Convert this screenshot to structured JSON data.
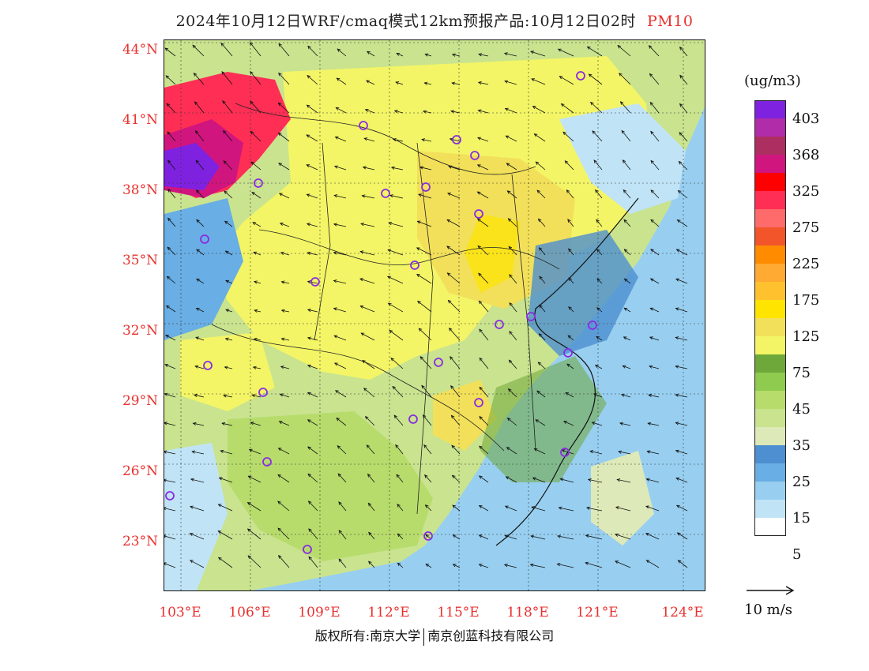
{
  "title": {
    "main": "2024年10月12日WRF/cmaq模式12km预报产品:10月12日02时",
    "variable": "PM10"
  },
  "axes": {
    "latitudes": [
      "44°N",
      "41°N",
      "38°N",
      "35°N",
      "32°N",
      "29°N",
      "26°N",
      "23°N"
    ],
    "longitudes": [
      "103°E",
      "106°E",
      "109°E",
      "112°E",
      "115°E",
      "118°E",
      "121°E",
      "124°E"
    ]
  },
  "legend": {
    "unit": "(ug/m3)",
    "colors": [
      "#7f22e0",
      "#b02ca8",
      "#ad2f62",
      "#d1157e",
      "#ff0000",
      "#ff2e55",
      "#ff6a6a",
      "#f2552a",
      "#ff8c00",
      "#ffaa33",
      "#ffc22e",
      "#ffe400",
      "#f2e05a",
      "#f3f566",
      "#6fa83a",
      "#8ecb4e",
      "#b7dc6c",
      "#c9e38f",
      "#dde9b8",
      "#4d8fd0",
      "#69aee4",
      "#98cff0",
      "#c0e4f6",
      "#ffffff"
    ],
    "labels": [
      "403",
      "368",
      "325",
      "275",
      "225",
      "175",
      "125",
      "75",
      "45",
      "35",
      "25",
      "15",
      "5"
    ]
  },
  "wind_reference": {
    "label": "10 m/s"
  },
  "copyright": {
    "left": "版权所有:南京大学",
    "right": "南京创蓝科技有限公司"
  },
  "map_colors": {
    "yellow": "#f3f566",
    "gold": "#f2e05a",
    "amber": "#ffe400",
    "green": "#b7dc6c",
    "light_green": "#c9e38f",
    "dark_green": "#6fa83a",
    "pale_green": "#dde9b8",
    "blue": "#69aee4",
    "dark_blue": "#4d8fd0",
    "light_blue": "#98cff0",
    "pale_blue": "#c0e4f6",
    "magenta": "#d1157e",
    "purple": "#7f22e0",
    "red": "#ff2e55",
    "city_marker": "#8a2be2"
  }
}
